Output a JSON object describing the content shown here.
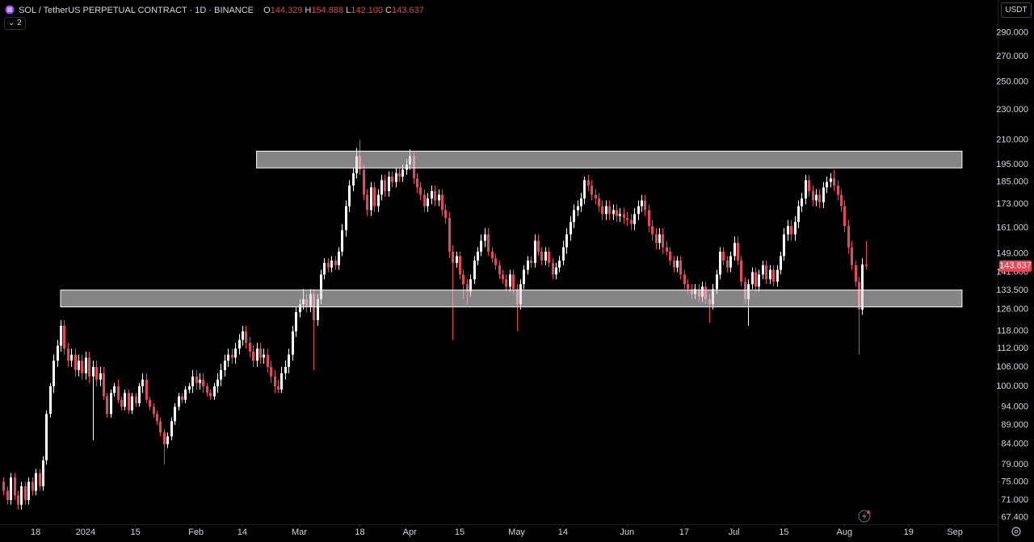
{
  "chart_data": {
    "type": "candlestick",
    "title": "SOL / TetherUS PERPETUAL CONTRACT · 1D · BINANCE",
    "ohlc_labels": [
      "O",
      "H",
      "L",
      "C"
    ],
    "last_value_labels": [
      "144.329",
      "154.888",
      "142.100",
      "143.637"
    ],
    "currency": "USDT",
    "indicators_count": 2,
    "up_color": "#ffffff",
    "down_color": "#e8475a",
    "log_scale": true,
    "grid": false,
    "xlim": [
      "2023-12-08",
      "2024-09-13"
    ],
    "ylim": [
      66,
      320
    ],
    "xticks": [
      {
        "value": "2023-12-18",
        "label": "18"
      },
      {
        "value": "2024-01-01",
        "label": "2024"
      },
      {
        "value": "2024-01-15",
        "label": "15"
      },
      {
        "value": "2024-02-01",
        "label": "Feb"
      },
      {
        "value": "2024-02-14",
        "label": "14"
      },
      {
        "value": "2024-03-01",
        "label": "Mar"
      },
      {
        "value": "2024-03-18",
        "label": "18"
      },
      {
        "value": "2024-04-01",
        "label": "Apr"
      },
      {
        "value": "2024-04-15",
        "label": "15"
      },
      {
        "value": "2024-05-01",
        "label": "May"
      },
      {
        "value": "2024-05-14",
        "label": "14"
      },
      {
        "value": "2024-06-01",
        "label": "Jun"
      },
      {
        "value": "2024-06-17",
        "label": "17"
      },
      {
        "value": "2024-07-01",
        "label": "Jul"
      },
      {
        "value": "2024-07-15",
        "label": "15"
      },
      {
        "value": "2024-08-01",
        "label": "Aug"
      },
      {
        "value": "2024-08-19",
        "label": "19"
      },
      {
        "value": "2024-09-01",
        "label": "Sep"
      }
    ],
    "yticks": [
      {
        "value": 290,
        "label": "290.000"
      },
      {
        "value": 270,
        "label": "270.000"
      },
      {
        "value": 250,
        "label": "250.000"
      },
      {
        "value": 230,
        "label": "230.000"
      },
      {
        "value": 210,
        "label": "210.000"
      },
      {
        "value": 195,
        "label": "195.000"
      },
      {
        "value": 185,
        "label": "185.000"
      },
      {
        "value": 173,
        "label": "173.000"
      },
      {
        "value": 161,
        "label": "161.000"
      },
      {
        "value": 149,
        "label": "149.000"
      },
      {
        "value": 141,
        "label": "141.000"
      },
      {
        "value": 133.5,
        "label": "133.500"
      },
      {
        "value": 126,
        "label": "126.000"
      },
      {
        "value": 118,
        "label": "118.000"
      },
      {
        "value": 112,
        "label": "112.000"
      },
      {
        "value": 106,
        "label": "106.000"
      },
      {
        "value": 100,
        "label": "100.000"
      },
      {
        "value": 94,
        "label": "94.000"
      },
      {
        "value": 89,
        "label": "89.000"
      },
      {
        "value": 84,
        "label": "84.000"
      },
      {
        "value": 79,
        "label": "79.000"
      },
      {
        "value": 75,
        "label": "75.000"
      },
      {
        "value": 71,
        "label": "71.000"
      },
      {
        "value": 67.4,
        "label": "67.400"
      }
    ],
    "zones": [
      {
        "start": "2023-12-25",
        "end": "2024-09-03",
        "low": 127,
        "high": 133.6
      },
      {
        "start": "2024-02-18",
        "end": "2024-09-03",
        "low": 193,
        "high": 203
      }
    ],
    "x": [
      "2023-12-09",
      "2023-12-10",
      "2023-12-11",
      "2023-12-12",
      "2023-12-13",
      "2023-12-14",
      "2023-12-15",
      "2023-12-16",
      "2023-12-17",
      "2023-12-18",
      "2023-12-19",
      "2023-12-20",
      "2023-12-21",
      "2023-12-22",
      "2023-12-23",
      "2023-12-24",
      "2023-12-25",
      "2023-12-26",
      "2023-12-27",
      "2023-12-28",
      "2023-12-29",
      "2023-12-30",
      "2023-12-31",
      "2024-01-01",
      "2024-01-02",
      "2024-01-03",
      "2024-01-04",
      "2024-01-05",
      "2024-01-06",
      "2024-01-07",
      "2024-01-08",
      "2024-01-09",
      "2024-01-10",
      "2024-01-11",
      "2024-01-12",
      "2024-01-13",
      "2024-01-14",
      "2024-01-15",
      "2024-01-16",
      "2024-01-17",
      "2024-01-18",
      "2024-01-19",
      "2024-01-20",
      "2024-01-21",
      "2024-01-22",
      "2024-01-23",
      "2024-01-24",
      "2024-01-25",
      "2024-01-26",
      "2024-01-27",
      "2024-01-28",
      "2024-01-29",
      "2024-01-30",
      "2024-01-31",
      "2024-02-01",
      "2024-02-02",
      "2024-02-03",
      "2024-02-04",
      "2024-02-05",
      "2024-02-06",
      "2024-02-07",
      "2024-02-08",
      "2024-02-09",
      "2024-02-10",
      "2024-02-11",
      "2024-02-12",
      "2024-02-13",
      "2024-02-14",
      "2024-02-15",
      "2024-02-16",
      "2024-02-17",
      "2024-02-18",
      "2024-02-19",
      "2024-02-20",
      "2024-02-21",
      "2024-02-22",
      "2024-02-23",
      "2024-02-24",
      "2024-02-25",
      "2024-02-26",
      "2024-02-27",
      "2024-02-28",
      "2024-02-29",
      "2024-03-01",
      "2024-03-02",
      "2024-03-03",
      "2024-03-04",
      "2024-03-05",
      "2024-03-06",
      "2024-03-07",
      "2024-03-08",
      "2024-03-09",
      "2024-03-10",
      "2024-03-11",
      "2024-03-12",
      "2024-03-13",
      "2024-03-14",
      "2024-03-15",
      "2024-03-16",
      "2024-03-17",
      "2024-03-18",
      "2024-03-19",
      "2024-03-20",
      "2024-03-21",
      "2024-03-22",
      "2024-03-23",
      "2024-03-24",
      "2024-03-25",
      "2024-03-26",
      "2024-03-27",
      "2024-03-28",
      "2024-03-29",
      "2024-03-30",
      "2024-03-31",
      "2024-04-01",
      "2024-04-02",
      "2024-04-03",
      "2024-04-04",
      "2024-04-05",
      "2024-04-06",
      "2024-04-07",
      "2024-04-08",
      "2024-04-09",
      "2024-04-10",
      "2024-04-11",
      "2024-04-12",
      "2024-04-13",
      "2024-04-14",
      "2024-04-15",
      "2024-04-16",
      "2024-04-17",
      "2024-04-18",
      "2024-04-19",
      "2024-04-20",
      "2024-04-21",
      "2024-04-22",
      "2024-04-23",
      "2024-04-24",
      "2024-04-25",
      "2024-04-26",
      "2024-04-27",
      "2024-04-28",
      "2024-04-29",
      "2024-04-30",
      "2024-05-01",
      "2024-05-02",
      "2024-05-03",
      "2024-05-04",
      "2024-05-05",
      "2024-05-06",
      "2024-05-07",
      "2024-05-08",
      "2024-05-09",
      "2024-05-10",
      "2024-05-11",
      "2024-05-12",
      "2024-05-13",
      "2024-05-14",
      "2024-05-15",
      "2024-05-16",
      "2024-05-17",
      "2024-05-18",
      "2024-05-19",
      "2024-05-20",
      "2024-05-21",
      "2024-05-22",
      "2024-05-23",
      "2024-05-24",
      "2024-05-25",
      "2024-05-26",
      "2024-05-27",
      "2024-05-28",
      "2024-05-29",
      "2024-05-30",
      "2024-05-31",
      "2024-06-01",
      "2024-06-02",
      "2024-06-03",
      "2024-06-04",
      "2024-06-05",
      "2024-06-06",
      "2024-06-07",
      "2024-06-08",
      "2024-06-09",
      "2024-06-10",
      "2024-06-11",
      "2024-06-12",
      "2024-06-13",
      "2024-06-14",
      "2024-06-15",
      "2024-06-16",
      "2024-06-17",
      "2024-06-18",
      "2024-06-19",
      "2024-06-20",
      "2024-06-21",
      "2024-06-22",
      "2024-06-23",
      "2024-06-24",
      "2024-06-25",
      "2024-06-26",
      "2024-06-27",
      "2024-06-28",
      "2024-06-29",
      "2024-06-30",
      "2024-07-01",
      "2024-07-02",
      "2024-07-03",
      "2024-07-04",
      "2024-07-05",
      "2024-07-06",
      "2024-07-07",
      "2024-07-08",
      "2024-07-09",
      "2024-07-10",
      "2024-07-11",
      "2024-07-12",
      "2024-07-13",
      "2024-07-14",
      "2024-07-15",
      "2024-07-16",
      "2024-07-17",
      "2024-07-18",
      "2024-07-19",
      "2024-07-20",
      "2024-07-21",
      "2024-07-22",
      "2024-07-23",
      "2024-07-24",
      "2024-07-25",
      "2024-07-26",
      "2024-07-27",
      "2024-07-28",
      "2024-07-29",
      "2024-07-30",
      "2024-07-31",
      "2024-08-01",
      "2024-08-02",
      "2024-08-03",
      "2024-08-04",
      "2024-08-05",
      "2024-08-06",
      "2024-08-07"
    ],
    "open": [
      75,
      73,
      71,
      76,
      72,
      70,
      74,
      71,
      75,
      73,
      77,
      74,
      80,
      92,
      100,
      108,
      113,
      120,
      112,
      108,
      110,
      105,
      108,
      104,
      109,
      103,
      106,
      102,
      104,
      97,
      92,
      98,
      100,
      96,
      94,
      98,
      93,
      97,
      95,
      100,
      102,
      96,
      94,
      92,
      90,
      87,
      84,
      86,
      90,
      94,
      97,
      96,
      99,
      100,
      103,
      101,
      102,
      100,
      98,
      97,
      100,
      102,
      105,
      108,
      110,
      109,
      112,
      115,
      118,
      114,
      111,
      108,
      112,
      109,
      110,
      106,
      103,
      100,
      99,
      104,
      106,
      110,
      118,
      125,
      128,
      130,
      127,
      132,
      122,
      130,
      140,
      145,
      143,
      146,
      144,
      150,
      160,
      172,
      183,
      190,
      200,
      192,
      178,
      170,
      182,
      172,
      178,
      186,
      180,
      188,
      185,
      190,
      188,
      192,
      195,
      200,
      187,
      182,
      178,
      172,
      176,
      180,
      175,
      178,
      170,
      166,
      150,
      145,
      148,
      140,
      136,
      133,
      138,
      146,
      150,
      155,
      158,
      150,
      147,
      144,
      140,
      138,
      135,
      140,
      134,
      128,
      136,
      142,
      146,
      145,
      155,
      150,
      146,
      150,
      145,
      140,
      143,
      146,
      152,
      158,
      164,
      170,
      172,
      176,
      186,
      183,
      178,
      176,
      172,
      168,
      172,
      168,
      170,
      167,
      168,
      166,
      165,
      163,
      168,
      172,
      175,
      170,
      162,
      158,
      154,
      158,
      152,
      150,
      146,
      143,
      146,
      140,
      136,
      134,
      132,
      134,
      131,
      135,
      130,
      128,
      134,
      140,
      150,
      146,
      143,
      148,
      154,
      146,
      137,
      130,
      136,
      141,
      135,
      140,
      144,
      138,
      142,
      137,
      142,
      148,
      158,
      162,
      158,
      164,
      172,
      176,
      186,
      180,
      175,
      178,
      174,
      182,
      185,
      187,
      183,
      178,
      172,
      162,
      152,
      144,
      137,
      126,
      144.329
    ],
    "high": [
      76,
      74,
      77,
      77,
      73,
      75,
      75,
      76,
      76,
      78,
      78,
      81,
      93,
      101,
      110,
      115,
      122,
      122,
      114,
      112,
      112,
      110,
      110,
      111,
      111,
      108,
      108,
      106,
      106,
      98,
      99,
      101,
      102,
      97,
      99,
      99,
      98,
      98,
      101,
      104,
      104,
      97,
      95,
      93,
      91,
      88,
      87,
      91,
      95,
      98,
      98,
      100,
      101,
      105,
      105,
      104,
      104,
      101,
      99,
      101,
      104,
      107,
      110,
      112,
      112,
      114,
      117,
      120,
      120,
      116,
      113,
      114,
      114,
      112,
      112,
      108,
      105,
      102,
      106,
      108,
      112,
      120,
      127,
      130,
      134,
      132,
      134,
      134,
      132,
      142,
      147,
      147,
      148,
      148,
      152,
      163,
      175,
      186,
      193,
      205,
      210,
      195,
      181,
      185,
      185,
      181,
      189,
      189,
      191,
      191,
      193,
      193,
      195,
      198,
      204,
      203,
      190,
      185,
      181,
      179,
      183,
      183,
      181,
      181,
      173,
      169,
      153,
      150,
      150,
      142,
      138,
      140,
      148,
      152,
      158,
      161,
      161,
      152,
      149,
      146,
      142,
      140,
      142,
      142,
      136,
      138,
      144,
      148,
      148,
      158,
      158,
      152,
      152,
      152,
      147,
      145,
      148,
      155,
      161,
      167,
      173,
      175,
      179,
      188,
      189,
      186,
      181,
      179,
      175,
      175,
      175,
      173,
      173,
      171,
      171,
      169,
      168,
      171,
      175,
      178,
      178,
      173,
      165,
      161,
      161,
      161,
      155,
      152,
      148,
      148,
      148,
      142,
      138,
      136,
      136,
      136,
      137,
      137,
      132,
      136,
      142,
      152,
      152,
      148,
      150,
      157,
      157,
      148,
      139,
      138,
      143,
      143,
      142,
      146,
      146,
      144,
      144,
      144,
      150,
      161,
      165,
      165,
      167,
      175,
      179,
      189,
      189,
      183,
      181,
      181,
      185,
      188,
      190,
      192,
      186,
      181,
      175,
      165,
      155,
      146,
      139,
      147,
      154.888
    ],
    "low": [
      72,
      70,
      70,
      71,
      69,
      69,
      70,
      70,
      72,
      72,
      73,
      73,
      79,
      91,
      98,
      106,
      111,
      110,
      106,
      106,
      103,
      103,
      102,
      102,
      101,
      85,
      100,
      100,
      96,
      91,
      91,
      97,
      95,
      93,
      93,
      92,
      92,
      94,
      94,
      98,
      95,
      93,
      91,
      89,
      86,
      79,
      83,
      85,
      89,
      93,
      95,
      95,
      98,
      98,
      99,
      99,
      98,
      97,
      96,
      96,
      98,
      100,
      103,
      106,
      107,
      107,
      110,
      113,
      112,
      109,
      106,
      106,
      107,
      107,
      104,
      101,
      98,
      98,
      98,
      102,
      104,
      108,
      116,
      123,
      126,
      125,
      125,
      105,
      120,
      128,
      138,
      141,
      141,
      142,
      142,
      148,
      157,
      169,
      180,
      187,
      189,
      175,
      167,
      167,
      169,
      169,
      175,
      177,
      177,
      182,
      182,
      185,
      185,
      189,
      192,
      184,
      179,
      175,
      169,
      169,
      173,
      172,
      172,
      167,
      163,
      147,
      115,
      143,
      138,
      130,
      128,
      131,
      136,
      144,
      148,
      152,
      148,
      145,
      142,
      138,
      136,
      133,
      133,
      132,
      118,
      126,
      134,
      140,
      143,
      143,
      148,
      144,
      144,
      143,
      138,
      138,
      141,
      144,
      149,
      155,
      161,
      167,
      169,
      173,
      180,
      175,
      173,
      169,
      165,
      165,
      165,
      165,
      164,
      164,
      163,
      162,
      160,
      160,
      165,
      169,
      167,
      159,
      155,
      151,
      151,
      149,
      148,
      144,
      141,
      141,
      138,
      134,
      132,
      130,
      130,
      129,
      129,
      128,
      121,
      126,
      132,
      138,
      144,
      141,
      141,
      146,
      144,
      135,
      128,
      120,
      134,
      133,
      133,
      138,
      136,
      136,
      135,
      135,
      140,
      146,
      155,
      155,
      155,
      161,
      169,
      173,
      177,
      172,
      172,
      171,
      171,
      179,
      182,
      180,
      175,
      169,
      159,
      149,
      142,
      135,
      110,
      124,
      142.1
    ],
    "close": [
      73,
      71,
      76,
      72,
      70,
      74,
      71,
      75,
      73,
      77,
      74,
      80,
      92,
      100,
      108,
      113,
      120,
      112,
      108,
      110,
      105,
      108,
      104,
      109,
      103,
      106,
      102,
      104,
      97,
      92,
      98,
      100,
      96,
      94,
      98,
      93,
      97,
      95,
      100,
      102,
      96,
      94,
      92,
      90,
      87,
      84,
      86,
      90,
      94,
      97,
      96,
      99,
      100,
      103,
      101,
      102,
      100,
      98,
      97,
      100,
      102,
      105,
      108,
      110,
      109,
      112,
      115,
      118,
      114,
      111,
      108,
      112,
      109,
      110,
      106,
      103,
      100,
      99,
      104,
      106,
      110,
      118,
      125,
      128,
      130,
      127,
      132,
      122,
      130,
      140,
      145,
      143,
      146,
      144,
      150,
      160,
      172,
      183,
      190,
      200,
      192,
      178,
      170,
      182,
      172,
      178,
      186,
      180,
      188,
      185,
      190,
      188,
      192,
      195,
      200,
      187,
      182,
      178,
      172,
      176,
      180,
      175,
      178,
      170,
      166,
      150,
      145,
      148,
      140,
      136,
      133,
      138,
      146,
      150,
      155,
      158,
      150,
      147,
      144,
      140,
      138,
      135,
      140,
      134,
      128,
      136,
      142,
      146,
      145,
      155,
      150,
      146,
      150,
      145,
      140,
      143,
      146,
      152,
      158,
      164,
      170,
      172,
      176,
      186,
      183,
      178,
      176,
      172,
      168,
      172,
      168,
      170,
      167,
      168,
      166,
      165,
      163,
      168,
      172,
      175,
      170,
      162,
      158,
      154,
      158,
      152,
      150,
      146,
      143,
      146,
      140,
      136,
      134,
      132,
      134,
      131,
      135,
      130,
      128,
      134,
      140,
      150,
      146,
      143,
      148,
      154,
      146,
      137,
      130,
      136,
      141,
      135,
      140,
      144,
      138,
      142,
      137,
      142,
      148,
      158,
      162,
      158,
      164,
      172,
      176,
      186,
      180,
      175,
      178,
      174,
      182,
      185,
      187,
      183,
      178,
      172,
      162,
      152,
      144,
      137,
      126,
      144.329,
      143.637
    ]
  }
}
